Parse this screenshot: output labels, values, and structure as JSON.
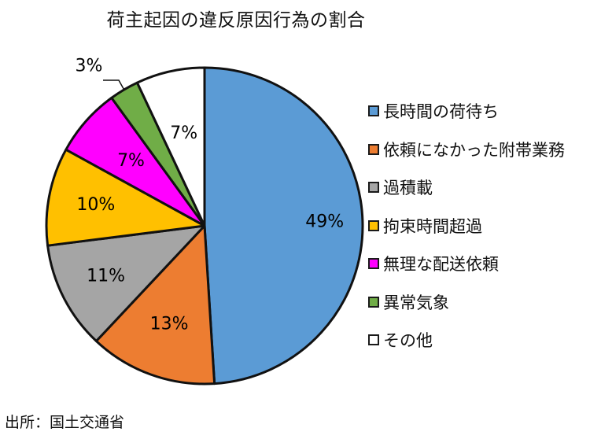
{
  "chart_data": {
    "type": "pie",
    "title": "荷主起因の違反原因行為の割合",
    "start_angle_deg": 0,
    "direction": "clockwise",
    "slices": [
      {
        "label": "長時間の荷待ち",
        "value": 49,
        "display": "49%",
        "color": "#5B9BD5"
      },
      {
        "label": "依頼になかった附帯業務",
        "value": 13,
        "display": "13%",
        "color": "#ED7D31"
      },
      {
        "label": "過積載",
        "value": 11,
        "display": "11%",
        "color": "#A5A5A5"
      },
      {
        "label": "拘束時間超過",
        "value": 10,
        "display": "10%",
        "color": "#FFC000"
      },
      {
        "label": "無理な配送依頼",
        "value": 7,
        "display": "7%",
        "color": "#FF00FF"
      },
      {
        "label": "異常気象",
        "value": 3,
        "display": "3%",
        "color": "#70AD47"
      },
      {
        "label": "その他",
        "value": 7,
        "display": "7%",
        "color": "#FFFFFF"
      }
    ],
    "legend_position": "right"
  },
  "source": "出所：国土交通省"
}
